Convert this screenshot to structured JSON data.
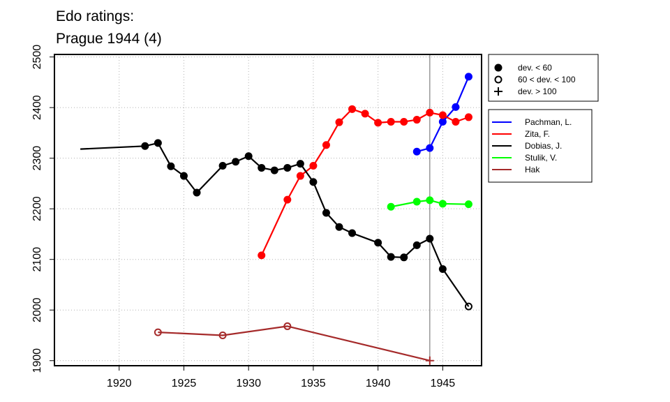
{
  "chart_data": {
    "type": "line",
    "title_lines": [
      "Edo ratings:",
      "Prague 1944 (4)"
    ],
    "xlim": [
      1915,
      1948
    ],
    "ylim": [
      1890,
      2505
    ],
    "x_ticks": [
      1920,
      1925,
      1930,
      1935,
      1940,
      1945
    ],
    "y_ticks": [
      1900,
      2000,
      2100,
      2200,
      2300,
      2400,
      2500
    ],
    "grid": true,
    "reference_line_x": 1944,
    "deviation_legend": [
      {
        "symbol": "filled",
        "label": "dev. < 60"
      },
      {
        "symbol": "open",
        "label": "60 < dev. < 100"
      },
      {
        "symbol": "plus",
        "label": "dev. > 100"
      }
    ],
    "series": [
      {
        "name": "Pachman, L.",
        "color": "#0000ff",
        "points": [
          {
            "x": 1943,
            "y": 2313,
            "m": "filled"
          },
          {
            "x": 1944,
            "y": 2320,
            "m": "filled"
          },
          {
            "x": 1945,
            "y": 2372,
            "m": "filled"
          },
          {
            "x": 1946,
            "y": 2401,
            "m": "filled"
          },
          {
            "x": 1947,
            "y": 2461,
            "m": "filled"
          }
        ]
      },
      {
        "name": "Zita, F.",
        "color": "#ff0000",
        "points": [
          {
            "x": 1931,
            "y": 2108,
            "m": "filled"
          },
          {
            "x": 1933,
            "y": 2218,
            "m": "filled"
          },
          {
            "x": 1934,
            "y": 2265,
            "m": "filled"
          },
          {
            "x": 1935,
            "y": 2285,
            "m": "filled"
          },
          {
            "x": 1936,
            "y": 2326,
            "m": "filled"
          },
          {
            "x": 1937,
            "y": 2371,
            "m": "filled"
          },
          {
            "x": 1938,
            "y": 2397,
            "m": "filled"
          },
          {
            "x": 1939,
            "y": 2388,
            "m": "filled"
          },
          {
            "x": 1940,
            "y": 2370,
            "m": "filled"
          },
          {
            "x": 1941,
            "y": 2372,
            "m": "filled"
          },
          {
            "x": 1942,
            "y": 2372,
            "m": "filled"
          },
          {
            "x": 1943,
            "y": 2376,
            "m": "filled"
          },
          {
            "x": 1944,
            "y": 2390,
            "m": "filled"
          },
          {
            "x": 1945,
            "y": 2385,
            "m": "filled"
          },
          {
            "x": 1946,
            "y": 2372,
            "m": "filled"
          },
          {
            "x": 1947,
            "y": 2381,
            "m": "filled"
          }
        ]
      },
      {
        "name": "Dobias, J.",
        "color": "#000000",
        "points": [
          {
            "x": 1917,
            "y": 2318,
            "m": "none"
          },
          {
            "x": 1922,
            "y": 2324,
            "m": "filled"
          },
          {
            "x": 1923,
            "y": 2330,
            "m": "filled"
          },
          {
            "x": 1924,
            "y": 2284,
            "m": "filled"
          },
          {
            "x": 1925,
            "y": 2265,
            "m": "filled"
          },
          {
            "x": 1926,
            "y": 2232,
            "m": "filled"
          },
          {
            "x": 1928,
            "y": 2285,
            "m": "filled"
          },
          {
            "x": 1929,
            "y": 2293,
            "m": "filled"
          },
          {
            "x": 1930,
            "y": 2304,
            "m": "filled"
          },
          {
            "x": 1931,
            "y": 2281,
            "m": "filled"
          },
          {
            "x": 1932,
            "y": 2276,
            "m": "filled"
          },
          {
            "x": 1933,
            "y": 2281,
            "m": "filled"
          },
          {
            "x": 1934,
            "y": 2289,
            "m": "filled"
          },
          {
            "x": 1935,
            "y": 2253,
            "m": "filled"
          },
          {
            "x": 1936,
            "y": 2192,
            "m": "filled"
          },
          {
            "x": 1937,
            "y": 2164,
            "m": "filled"
          },
          {
            "x": 1938,
            "y": 2152,
            "m": "filled"
          },
          {
            "x": 1940,
            "y": 2133,
            "m": "filled"
          },
          {
            "x": 1941,
            "y": 2105,
            "m": "filled"
          },
          {
            "x": 1942,
            "y": 2104,
            "m": "filled"
          },
          {
            "x": 1943,
            "y": 2128,
            "m": "filled"
          },
          {
            "x": 1944,
            "y": 2141,
            "m": "filled"
          },
          {
            "x": 1945,
            "y": 2081,
            "m": "filled"
          },
          {
            "x": 1947,
            "y": 2007,
            "m": "open"
          }
        ]
      },
      {
        "name": "Stulik, V.",
        "color": "#00ff00",
        "points": [
          {
            "x": 1941,
            "y": 2204,
            "m": "filled"
          },
          {
            "x": 1943,
            "y": 2214,
            "m": "filled"
          },
          {
            "x": 1944,
            "y": 2217,
            "m": "filled"
          },
          {
            "x": 1945,
            "y": 2210,
            "m": "filled"
          },
          {
            "x": 1947,
            "y": 2209,
            "m": "filled"
          }
        ]
      },
      {
        "name": "Hak",
        "color": "#a52a2a",
        "points": [
          {
            "x": 1923,
            "y": 1956,
            "m": "open"
          },
          {
            "x": 1928,
            "y": 1950,
            "m": "open"
          },
          {
            "x": 1933,
            "y": 1968,
            "m": "open"
          },
          {
            "x": 1944,
            "y": 1900,
            "m": "plus"
          }
        ]
      }
    ]
  }
}
